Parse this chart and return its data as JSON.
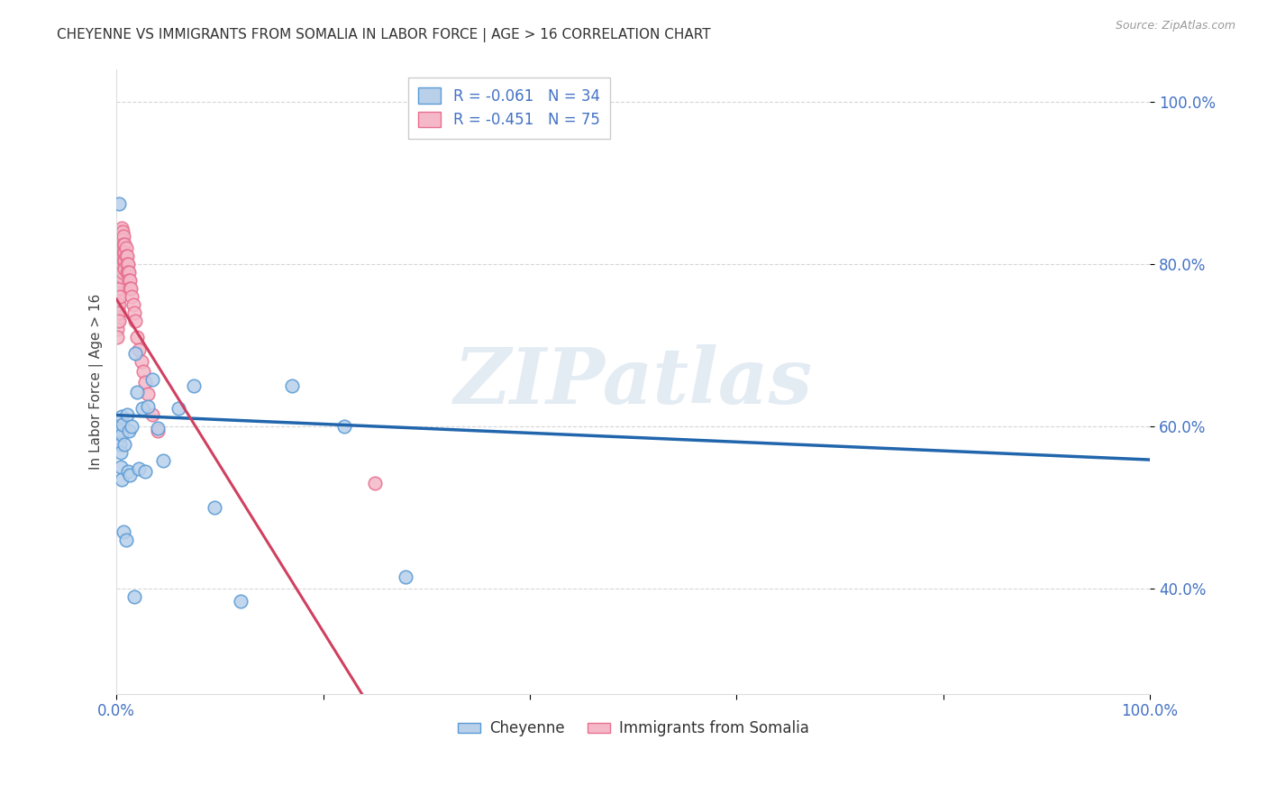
{
  "title": "CHEYENNE VS IMMIGRANTS FROM SOMALIA IN LABOR FORCE | AGE > 16 CORRELATION CHART",
  "source": "Source: ZipAtlas.com",
  "ylabel": "In Labor Force | Age > 16",
  "xlim": [
    0.0,
    1.0
  ],
  "ylim": [
    0.27,
    1.04
  ],
  "yticks": [
    0.4,
    0.6,
    0.8,
    1.0
  ],
  "ytick_labels": [
    "40.0%",
    "60.0%",
    "80.0%",
    "100.0%"
  ],
  "xticks": [
    0.0,
    0.2,
    0.4,
    0.6,
    0.8,
    1.0
  ],
  "xtick_labels": [
    "0.0%",
    "",
    "",
    "",
    "",
    "100.0%"
  ],
  "cheyenne_color": "#b8d0ea",
  "somalia_color": "#f4b8c8",
  "cheyenne_edge": "#5b9bd5",
  "somalia_edge": "#e87090",
  "reg_blue": "#2166ac",
  "reg_pink": "#d04060",
  "R_cheyenne": -0.061,
  "N_cheyenne": 34,
  "R_somalia": -0.451,
  "N_somalia": 75,
  "cheyenne_x": [
    0.002,
    0.003,
    0.003,
    0.004,
    0.004,
    0.005,
    0.005,
    0.005,
    0.006,
    0.007,
    0.008,
    0.009,
    0.01,
    0.011,
    0.012,
    0.013,
    0.015,
    0.017,
    0.018,
    0.02,
    0.022,
    0.025,
    0.028,
    0.03,
    0.035,
    0.04,
    0.045,
    0.06,
    0.075,
    0.095,
    0.12,
    0.17,
    0.22,
    0.28
  ],
  "cheyenne_y": [
    0.875,
    0.595,
    0.578,
    0.568,
    0.55,
    0.612,
    0.59,
    0.535,
    0.602,
    0.47,
    0.578,
    0.46,
    0.615,
    0.545,
    0.595,
    0.54,
    0.6,
    0.39,
    0.69,
    0.643,
    0.548,
    0.622,
    0.545,
    0.625,
    0.658,
    0.598,
    0.558,
    0.622,
    0.65,
    0.5,
    0.385,
    0.65,
    0.6,
    0.415
  ],
  "somalia_x": [
    0.001,
    0.001,
    0.001,
    0.001,
    0.001,
    0.002,
    0.002,
    0.002,
    0.002,
    0.002,
    0.002,
    0.002,
    0.002,
    0.002,
    0.002,
    0.003,
    0.003,
    0.003,
    0.003,
    0.003,
    0.003,
    0.003,
    0.003,
    0.003,
    0.004,
    0.004,
    0.004,
    0.004,
    0.004,
    0.005,
    0.005,
    0.005,
    0.005,
    0.005,
    0.005,
    0.005,
    0.006,
    0.006,
    0.006,
    0.006,
    0.006,
    0.006,
    0.007,
    0.007,
    0.007,
    0.007,
    0.008,
    0.008,
    0.008,
    0.008,
    0.009,
    0.009,
    0.01,
    0.01,
    0.01,
    0.011,
    0.011,
    0.012,
    0.012,
    0.013,
    0.013,
    0.014,
    0.015,
    0.016,
    0.017,
    0.018,
    0.02,
    0.022,
    0.024,
    0.026,
    0.028,
    0.03,
    0.035,
    0.04,
    0.25
  ],
  "somalia_y": [
    0.75,
    0.74,
    0.73,
    0.72,
    0.71,
    0.82,
    0.81,
    0.8,
    0.79,
    0.78,
    0.77,
    0.76,
    0.75,
    0.74,
    0.73,
    0.84,
    0.83,
    0.82,
    0.81,
    0.8,
    0.79,
    0.78,
    0.77,
    0.76,
    0.84,
    0.83,
    0.82,
    0.81,
    0.8,
    0.845,
    0.835,
    0.825,
    0.815,
    0.805,
    0.795,
    0.785,
    0.84,
    0.83,
    0.82,
    0.81,
    0.8,
    0.79,
    0.835,
    0.825,
    0.815,
    0.805,
    0.825,
    0.815,
    0.805,
    0.795,
    0.82,
    0.81,
    0.81,
    0.8,
    0.79,
    0.8,
    0.79,
    0.79,
    0.78,
    0.78,
    0.77,
    0.77,
    0.76,
    0.75,
    0.74,
    0.73,
    0.71,
    0.695,
    0.68,
    0.668,
    0.655,
    0.64,
    0.615,
    0.595,
    0.53
  ],
  "background_color": "#ffffff",
  "grid_color": "#cccccc",
  "watermark_text": "ZIPatlas",
  "watermark_color": "#c8d8e8",
  "reg_blue_intercept": 0.614,
  "reg_blue_slope": -0.055,
  "reg_pink_intercept": 0.757,
  "reg_pink_slope": -2.05
}
